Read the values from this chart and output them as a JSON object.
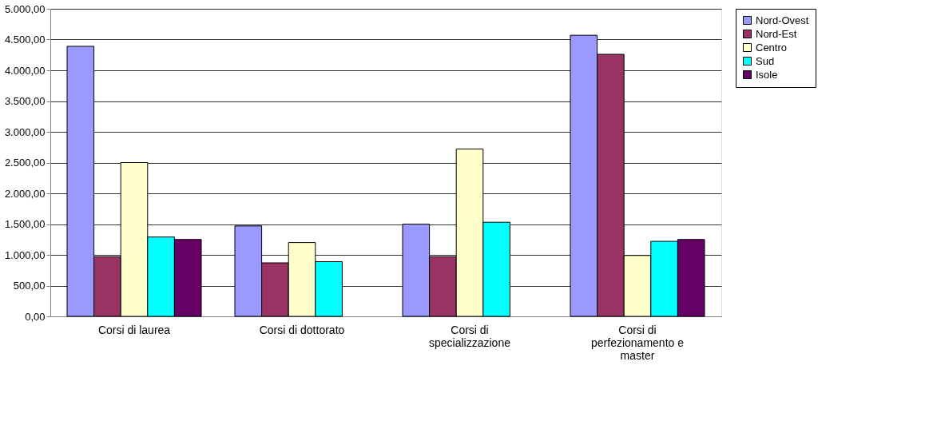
{
  "chart_data": {
    "type": "bar",
    "categories": [
      "Corsi di laurea",
      "Corsi di dottorato",
      "Corsi di specializzazione",
      "Corsi di perfezionamento e master"
    ],
    "series": [
      {
        "name": "Nord-Ovest",
        "color": "#9999ff",
        "values": [
          4390,
          1470,
          1500,
          4570
        ]
      },
      {
        "name": "Nord-Est",
        "color": "#993366",
        "values": [
          970,
          870,
          970,
          4260
        ]
      },
      {
        "name": "Centro",
        "color": "#ffffcc",
        "values": [
          2500,
          1200,
          2720,
          990
        ]
      },
      {
        "name": "Sud",
        "color": "#00ffff",
        "values": [
          1290,
          890,
          1530,
          1220
        ]
      },
      {
        "name": "Isole",
        "color": "#660066",
        "values": [
          1250,
          null,
          null,
          1250
        ]
      }
    ],
    "ylim": [
      0,
      5000
    ],
    "yticks": [
      {
        "value": 0,
        "label": "0,00"
      },
      {
        "value": 500,
        "label": "500,00"
      },
      {
        "value": 1000,
        "label": "1.000,00"
      },
      {
        "value": 1500,
        "label": "1.500,00"
      },
      {
        "value": 2000,
        "label": "2.000,00"
      },
      {
        "value": 2500,
        "label": "2.500,00"
      },
      {
        "value": 3000,
        "label": "3.000,00"
      },
      {
        "value": 3500,
        "label": "3.500,00"
      },
      {
        "value": 4000,
        "label": "4.000,00"
      },
      {
        "value": 4500,
        "label": "4.500,00"
      },
      {
        "value": 5000,
        "label": "5.000,00"
      }
    ],
    "grid": "y",
    "legend": "right"
  }
}
